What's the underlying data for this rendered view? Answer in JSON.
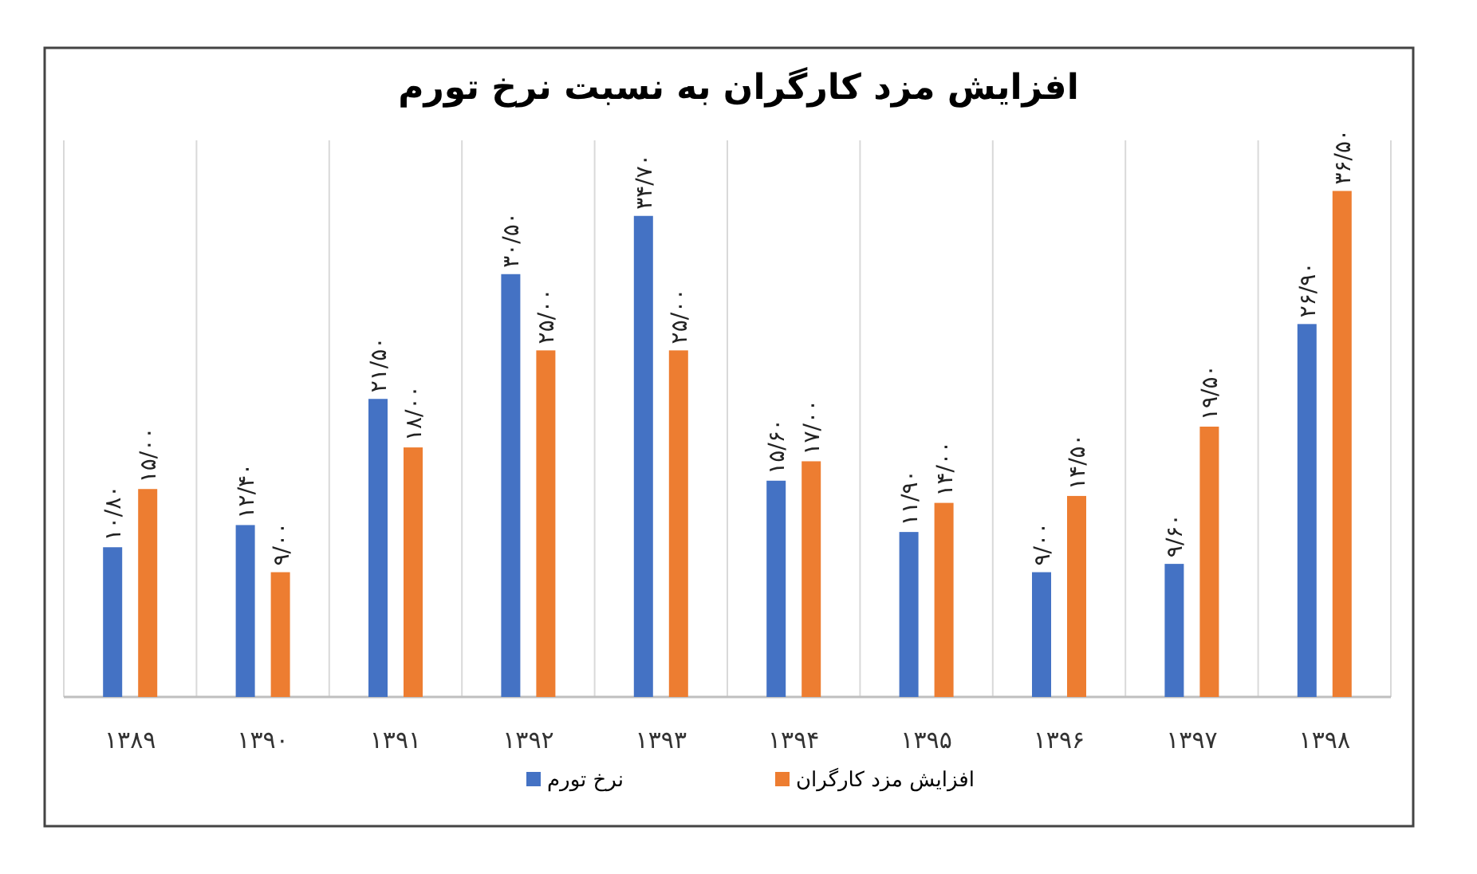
{
  "chart_data": {
    "type": "bar",
    "title": "افزایش مزد کارگران به نسبت نرخ تورم",
    "categories": [
      "۱۳۸۹",
      "۱۳۹۰",
      "۱۳۹۱",
      "۱۳۹۲",
      "۱۳۹۳",
      "۱۳۹۴",
      "۱۳۹۵",
      "۱۳۹۶",
      "۱۳۹۷",
      "۱۳۹۸"
    ],
    "series": [
      {
        "name": "نرخ تورم",
        "color": "#4472c4",
        "values": [
          10.8,
          12.4,
          21.5,
          30.5,
          34.7,
          15.6,
          11.9,
          9.0,
          9.6,
          26.9
        ],
        "value_labels": [
          "۱۰/۸۰",
          "۱۲/۴۰",
          "۲۱/۵۰",
          "۳۰/۵۰",
          "۳۴/۷۰",
          "۱۵/۶۰",
          "۱۱/۹۰",
          "۹/۰۰",
          "۹/۶۰",
          "۲۶/۹۰"
        ]
      },
      {
        "name": "افزایش مزد کارگران",
        "color": "#ed7d31",
        "values": [
          15.0,
          9.0,
          18.0,
          25.0,
          25.0,
          17.0,
          14.0,
          14.5,
          19.5,
          36.5
        ],
        "value_labels": [
          "۱۵/۰۰",
          "۹/۰۰",
          "۱۸/۰۰",
          "۲۵/۰۰",
          "۲۵/۰۰",
          "۱۷/۰۰",
          "۱۴/۰۰",
          "۱۴/۵۰",
          "۱۹/۵۰",
          "۳۶/۵۰"
        ]
      }
    ],
    "grid": "x",
    "legend": "bottom"
  }
}
